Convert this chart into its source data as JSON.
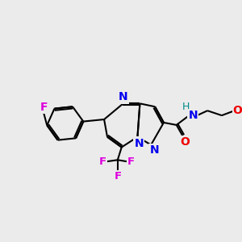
{
  "background_color": "#ebebeb",
  "bond_color": "#000000",
  "atom_colors": {
    "F": "#dd00dd",
    "N": "#0000ee",
    "O": "#ee0000",
    "H": "#008888",
    "C": "#000000"
  },
  "figsize": [
    3.0,
    3.0
  ],
  "dpi": 100
}
